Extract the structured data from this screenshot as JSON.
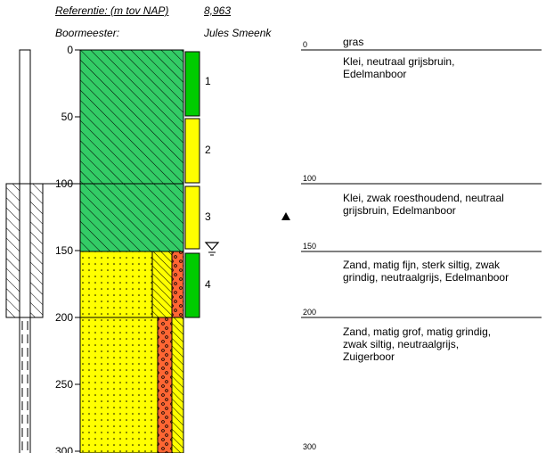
{
  "header": {
    "reference_label": "Referentie: (m tov NAP)",
    "reference_value": "8,963",
    "drill_master_label": "Boormeester:",
    "drill_master_value": "Jules Smeenk"
  },
  "depth_axis": {
    "ticks": [
      "0",
      "50",
      "100",
      "150",
      "200",
      "250",
      "300"
    ]
  },
  "samples": [
    "1",
    "2",
    "3",
    "4"
  ],
  "layers": [
    {
      "top": "0",
      "texts": [
        "gras",
        "Klei, neutraal grijsbruin,\nEdelmanboor"
      ]
    },
    {
      "top": "100",
      "texts": [
        "Klei, zwak roesthoudend, neutraal\ngrijsbruin,  Edelmanboor"
      ]
    },
    {
      "top": "150",
      "texts": [
        "Zand, matig fijn, sterk siltig, zwak\ngrindig, neutraalgrijs,  Edelmanboor"
      ]
    },
    {
      "top": "200",
      "texts": [
        "Zand, matig grof, matig grindig,\nzwak siltig, neutraalgrijs,\nZuigerboor"
      ]
    },
    {
      "top": "300",
      "texts": []
    }
  ],
  "colors": {
    "clay": "#33cc66",
    "sand": "#ffff00",
    "gravel": "#ff6633",
    "sample_green": "#00cc00",
    "sample_yellow": "#ffff00"
  },
  "icons": [
    "groundwater-level-icon",
    "filled-triangle-marker-icon"
  ]
}
